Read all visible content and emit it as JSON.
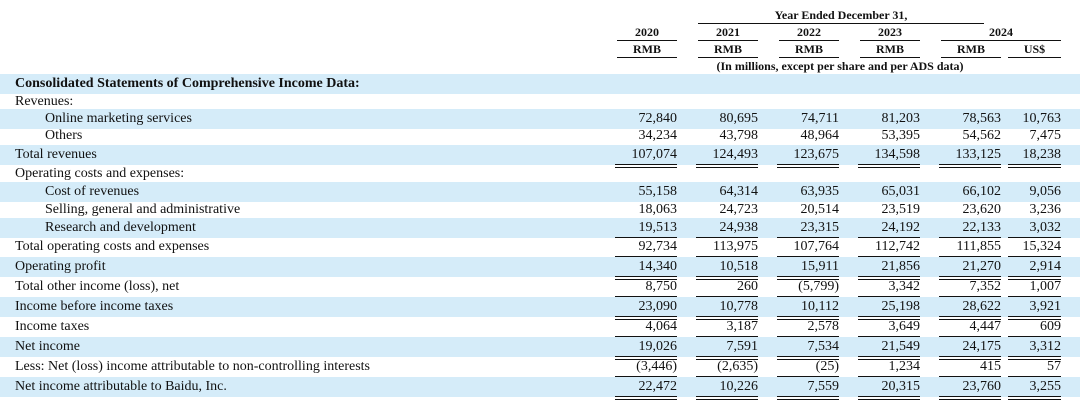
{
  "header": {
    "period": "Year Ended December 31,",
    "years": [
      "2020",
      "2021",
      "2022",
      "2023",
      "2024"
    ],
    "currencies": [
      "RMB",
      "RMB",
      "RMB",
      "RMB",
      "RMB",
      "US$"
    ],
    "note": "(In millions, except per share and per ADS data)"
  },
  "section_title": "Consolidated Statements of Comprehensive Income Data:",
  "rows": [
    {
      "label": "Revenues:",
      "indent": 0,
      "values": [
        "",
        "",
        "",
        "",
        "",
        ""
      ]
    },
    {
      "label": "Online marketing services",
      "indent": 2,
      "values": [
        "72,840",
        "80,695",
        "74,711",
        "81,203",
        "78,563",
        "10,763"
      ]
    },
    {
      "label": "Others",
      "indent": 2,
      "values": [
        "34,234",
        "43,798",
        "48,964",
        "53,395",
        "54,562",
        "7,475"
      ]
    },
    {
      "label": "Total revenues",
      "indent": 0,
      "values": [
        "107,074",
        "124,493",
        "123,675",
        "134,598",
        "133,125",
        "18,238"
      ]
    },
    {
      "label": "Operating costs and expenses:",
      "indent": 0,
      "values": [
        "",
        "",
        "",
        "",
        "",
        ""
      ]
    },
    {
      "label": "Cost of revenues",
      "indent": 2,
      "values": [
        "55,158",
        "64,314",
        "63,935",
        "65,031",
        "66,102",
        "9,056"
      ]
    },
    {
      "label": "Selling, general and administrative",
      "indent": 2,
      "values": [
        "18,063",
        "24,723",
        "20,514",
        "23,519",
        "23,620",
        "3,236"
      ]
    },
    {
      "label": "Research and development",
      "indent": 2,
      "values": [
        "19,513",
        "24,938",
        "23,315",
        "24,192",
        "22,133",
        "3,032"
      ]
    },
    {
      "label": "Total operating costs and expenses",
      "indent": 0,
      "values": [
        "92,734",
        "113,975",
        "107,764",
        "112,742",
        "111,855",
        "15,324"
      ]
    },
    {
      "label": "Operating profit",
      "indent": 0,
      "values": [
        "14,340",
        "10,518",
        "15,911",
        "21,856",
        "21,270",
        "2,914"
      ]
    },
    {
      "label": "Total other income (loss), net",
      "indent": 0,
      "values": [
        "8,750",
        "260",
        "(5,799)",
        "3,342",
        "7,352",
        "1,007"
      ]
    },
    {
      "label": "Income before income taxes",
      "indent": 0,
      "values": [
        "23,090",
        "10,778",
        "10,112",
        "25,198",
        "28,622",
        "3,921"
      ]
    },
    {
      "label": "Income taxes",
      "indent": 0,
      "values": [
        "4,064",
        "3,187",
        "2,578",
        "3,649",
        "4,447",
        "609"
      ]
    },
    {
      "label": "Net income",
      "indent": 0,
      "values": [
        "19,026",
        "7,591",
        "7,534",
        "21,549",
        "24,175",
        "3,312"
      ]
    },
    {
      "label": "Less: Net (loss) income attributable to non-controlling interests",
      "indent": 0,
      "values": [
        "(3,446)",
        "(2,635)",
        "(25)",
        "1,234",
        "415",
        "57"
      ]
    },
    {
      "label": "Net income attributable to Baidu, Inc.",
      "indent": 0,
      "values": [
        "22,472",
        "10,226",
        "7,559",
        "20,315",
        "23,760",
        "3,255"
      ]
    }
  ]
}
